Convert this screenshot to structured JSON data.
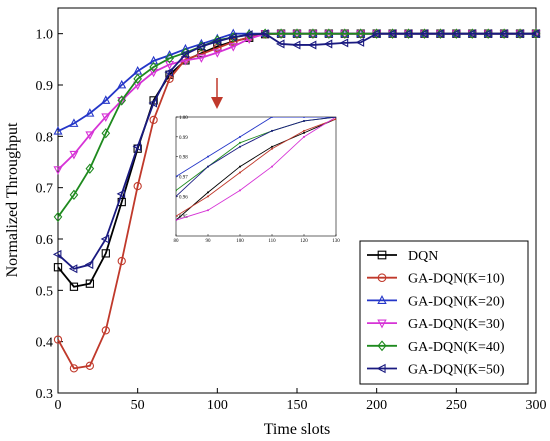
{
  "chart_data": {
    "type": "line",
    "xlabel": "Time slots",
    "ylabel": "Normalized Throughput",
    "xlim": [
      0,
      300
    ],
    "ylim": [
      0.3,
      1.05
    ],
    "xticks": [
      "0",
      "50",
      "100",
      "150",
      "200",
      "250",
      "300"
    ],
    "yticks": [
      "0.3",
      "0.4",
      "0.5",
      "0.6",
      "0.7",
      "0.8",
      "0.9",
      "1.0"
    ],
    "legend_position": "bottom-right",
    "annotation": "red arrow pointing to inset zoom",
    "series": [
      {
        "name": "DQN",
        "color": "#000000",
        "marker": "square",
        "x": [
          0,
          10,
          20,
          30,
          40,
          50,
          60,
          70,
          80,
          90,
          100,
          110,
          120,
          130,
          140,
          150,
          160,
          170,
          180,
          190,
          200,
          210,
          220,
          230,
          240,
          250,
          260,
          270,
          280,
          290,
          300
        ],
        "y": [
          0.545,
          0.507,
          0.513,
          0.572,
          0.672,
          0.776,
          0.87,
          0.92,
          0.948,
          0.962,
          0.975,
          0.985,
          0.992,
          0.999,
          1.0,
          1.0,
          1.0,
          1.0,
          1.0,
          1.0,
          1.0,
          1.0,
          1.0,
          1.0,
          1.0,
          1.0,
          1.0,
          1.0,
          1.0,
          1.0,
          1.0
        ]
      },
      {
        "name": "GA-DQN(K=10)",
        "color": "#c0392b",
        "marker": "circle",
        "x": [
          0,
          10,
          20,
          30,
          40,
          50,
          60,
          70,
          80,
          90,
          100,
          110,
          120,
          130,
          140,
          150,
          160,
          170,
          180,
          190,
          200,
          210,
          220,
          230,
          240,
          250,
          260,
          270,
          280,
          290,
          300
        ],
        "y": [
          0.404,
          0.348,
          0.353,
          0.422,
          0.557,
          0.703,
          0.832,
          0.912,
          0.95,
          0.96,
          0.972,
          0.984,
          0.993,
          0.999,
          1.0,
          1.0,
          1.0,
          1.0,
          1.0,
          1.0,
          1.0,
          1.0,
          1.0,
          1.0,
          1.0,
          1.0,
          1.0,
          1.0,
          1.0,
          1.0,
          1.0
        ]
      },
      {
        "name": "GA-DQN(K=20)",
        "color": "#2436c8",
        "marker": "triangle-up",
        "x": [
          0,
          10,
          20,
          30,
          40,
          50,
          60,
          70,
          80,
          90,
          100,
          110,
          120,
          130,
          140,
          150,
          160,
          170,
          180,
          190,
          200,
          210,
          220,
          230,
          240,
          250,
          260,
          270,
          280,
          290,
          300
        ],
        "y": [
          0.81,
          0.825,
          0.845,
          0.87,
          0.9,
          0.927,
          0.947,
          0.958,
          0.97,
          0.98,
          0.99,
          1.0,
          1.0,
          1.0,
          1.0,
          1.0,
          1.0,
          1.0,
          1.0,
          1.0,
          1.0,
          1.0,
          1.0,
          1.0,
          1.0,
          1.0,
          1.0,
          1.0,
          1.0,
          1.0,
          1.0
        ]
      },
      {
        "name": "GA-DQN(K=30)",
        "color": "#d633d6",
        "marker": "triangle-down",
        "x": [
          0,
          10,
          20,
          30,
          40,
          50,
          60,
          70,
          80,
          90,
          100,
          110,
          120,
          130,
          140,
          150,
          160,
          170,
          180,
          190,
          200,
          210,
          220,
          230,
          240,
          250,
          260,
          270,
          280,
          290,
          300
        ],
        "y": [
          0.735,
          0.765,
          0.803,
          0.838,
          0.87,
          0.9,
          0.925,
          0.94,
          0.948,
          0.953,
          0.963,
          0.975,
          0.99,
          1.0,
          1.0,
          1.0,
          1.0,
          1.0,
          1.0,
          1.0,
          1.0,
          1.0,
          1.0,
          1.0,
          1.0,
          1.0,
          1.0,
          1.0,
          1.0,
          1.0,
          1.0
        ]
      },
      {
        "name": "GA-DQN(K=40)",
        "color": "#1e8a1e",
        "marker": "diamond",
        "x": [
          0,
          10,
          20,
          30,
          40,
          50,
          60,
          70,
          80,
          90,
          100,
          110,
          120,
          130,
          140,
          150,
          160,
          170,
          180,
          190,
          200,
          210,
          220,
          230,
          240,
          250,
          260,
          270,
          280,
          290,
          300
        ],
        "y": [
          0.643,
          0.686,
          0.737,
          0.806,
          0.87,
          0.912,
          0.935,
          0.952,
          0.963,
          0.975,
          0.987,
          0.993,
          0.998,
          1.0,
          1.0,
          1.0,
          1.0,
          1.0,
          1.0,
          1.0,
          1.0,
          1.0,
          1.0,
          1.0,
          1.0,
          1.0,
          1.0,
          1.0,
          1.0,
          1.0,
          1.0
        ]
      },
      {
        "name": "GA-DQN(K=50)",
        "color": "#1a1a80",
        "marker": "triangle-left",
        "x": [
          0,
          10,
          20,
          30,
          40,
          50,
          60,
          70,
          80,
          90,
          100,
          110,
          120,
          130,
          140,
          150,
          160,
          170,
          180,
          190,
          200,
          210,
          220,
          230,
          240,
          250,
          260,
          270,
          280,
          290,
          300
        ],
        "y": [
          0.57,
          0.542,
          0.55,
          0.6,
          0.688,
          0.78,
          0.865,
          0.925,
          0.96,
          0.975,
          0.985,
          0.993,
          0.998,
          1.0,
          0.98,
          0.978,
          0.978,
          0.98,
          0.982,
          0.983,
          1.0,
          1.0,
          1.0,
          1.0,
          1.0,
          1.0,
          1.0,
          1.0,
          1.0,
          1.0,
          1.0
        ]
      }
    ],
    "inset": {
      "xlim": [
        80,
        130
      ],
      "ylim": [
        0.94,
        1.0
      ],
      "xticks": [
        "80",
        "90",
        "100",
        "110",
        "120",
        "130"
      ],
      "yticks": [
        "0.95",
        "0.96",
        "0.97",
        "0.98",
        "0.99",
        "1.00"
      ]
    }
  }
}
